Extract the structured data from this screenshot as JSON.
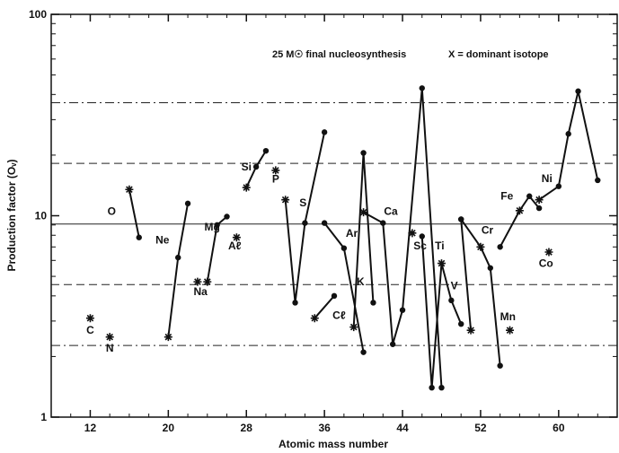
{
  "chart_data": {
    "type": "scatter",
    "title": "",
    "annotation_left": "25 M☉ final nucleosynthesis",
    "annotation_right": "X = dominant isotope",
    "xlabel": "Atomic mass number",
    "ylabel": "Production factor (Oᵥ)",
    "y_scale": "log",
    "xlim": [
      8,
      66
    ],
    "ylim": [
      1,
      100
    ],
    "x_ticks": [
      12,
      20,
      28,
      36,
      44,
      52,
      60
    ],
    "x_tick_labels": [
      "12",
      "20",
      "28",
      "36",
      "44",
      "52",
      "60"
    ],
    "y_ticks": [
      1,
      10,
      100
    ],
    "y_tick_labels": [
      "1",
      "10",
      "100"
    ],
    "reference_lines": [
      {
        "value": 9.1,
        "style": "solid"
      },
      {
        "value": 4.55,
        "style": "dashed"
      },
      {
        "value": 18.2,
        "style": "dashed"
      },
      {
        "value": 2.27,
        "style": "dashdot"
      },
      {
        "value": 36.4,
        "style": "dashdot"
      }
    ],
    "elements": [
      {
        "label": "C",
        "label_x": 12,
        "label_y": 2.7,
        "points": [
          {
            "x": 12,
            "y": 3.1,
            "dominant": true
          }
        ]
      },
      {
        "label": "N",
        "label_x": 14,
        "label_y": 2.2,
        "points": [
          {
            "x": 14,
            "y": 2.5,
            "dominant": true
          }
        ]
      },
      {
        "label": "O",
        "label_x": 14.2,
        "label_y": 10.5,
        "points": [
          {
            "x": 16,
            "y": 13.5,
            "dominant": true
          },
          {
            "x": 17,
            "y": 7.8,
            "dominant": false
          }
        ]
      },
      {
        "label": "Ne",
        "label_x": 19.4,
        "label_y": 7.6,
        "points": [
          {
            "x": 20,
            "y": 2.5,
            "dominant": true
          },
          {
            "x": 21,
            "y": 6.2,
            "dominant": false
          },
          {
            "x": 22,
            "y": 11.5,
            "dominant": false
          }
        ]
      },
      {
        "label": "Na",
        "label_x": 23.3,
        "label_y": 4.2,
        "points": [
          {
            "x": 23,
            "y": 4.7,
            "dominant": true
          }
        ]
      },
      {
        "label": "Mg",
        "label_x": 24.5,
        "label_y": 8.8,
        "points": [
          {
            "x": 24,
            "y": 4.7,
            "dominant": true
          },
          {
            "x": 25,
            "y": 9.0,
            "dominant": false
          },
          {
            "x": 26,
            "y": 9.9,
            "dominant": false
          }
        ]
      },
      {
        "label": "Aℓ",
        "label_x": 26.8,
        "label_y": 7.1,
        "points": [
          {
            "x": 27,
            "y": 7.8,
            "dominant": true
          }
        ]
      },
      {
        "label": "Si",
        "label_x": 28,
        "label_y": 17.5,
        "points": [
          {
            "x": 28,
            "y": 13.8,
            "dominant": true
          },
          {
            "x": 29,
            "y": 17.5,
            "dominant": false
          },
          {
            "x": 30,
            "y": 21.0,
            "dominant": false
          }
        ]
      },
      {
        "label": "P",
        "label_x": 31,
        "label_y": 15.2,
        "points": [
          {
            "x": 31,
            "y": 16.8,
            "dominant": true
          }
        ]
      },
      {
        "label": "S",
        "label_x": 33.8,
        "label_y": 11.6,
        "points": [
          {
            "x": 32,
            "y": 12.0,
            "dominant": true
          },
          {
            "x": 33,
            "y": 3.7,
            "dominant": false
          },
          {
            "x": 34,
            "y": 9.2,
            "dominant": false
          },
          {
            "x": 36,
            "y": 26.0,
            "dominant": false
          }
        ]
      },
      {
        "label": "Cℓ",
        "label_x": 37.5,
        "label_y": 3.2,
        "points": [
          {
            "x": 35,
            "y": 3.1,
            "dominant": true
          },
          {
            "x": 37,
            "y": 4.0,
            "dominant": false
          }
        ]
      },
      {
        "label": "Ar",
        "label_x": 38.8,
        "label_y": 8.2,
        "points": [
          {
            "x": 36,
            "y": 9.2,
            "dominant": false
          },
          {
            "x": 38,
            "y": 6.9,
            "dominant": false
          },
          {
            "x": 40,
            "y": 2.1,
            "dominant": false
          }
        ]
      },
      {
        "label": "K",
        "label_x": 39.7,
        "label_y": 4.7,
        "points": [
          {
            "x": 39,
            "y": 2.8,
            "dominant": true
          },
          {
            "x": 40,
            "y": 20.5,
            "dominant": false
          },
          {
            "x": 41,
            "y": 3.7,
            "dominant": false
          }
        ]
      },
      {
        "label": "Ca",
        "label_x": 42.8,
        "label_y": 10.5,
        "points": [
          {
            "x": 40,
            "y": 10.4,
            "dominant": true
          },
          {
            "x": 42,
            "y": 9.2,
            "dominant": false
          },
          {
            "x": 43,
            "y": 2.3,
            "dominant": false
          },
          {
            "x": 44,
            "y": 3.4,
            "dominant": false
          },
          {
            "x": 46,
            "y": 43.0,
            "dominant": false
          },
          {
            "x": 48,
            "y": 1.4,
            "dominant": false
          }
        ]
      },
      {
        "label": "Sc",
        "label_x": 45.8,
        "label_y": 7.1,
        "points": [
          {
            "x": 45,
            "y": 8.2,
            "dominant": true
          }
        ]
      },
      {
        "label": "Ti",
        "label_x": 47.8,
        "label_y": 7.1,
        "points": [
          {
            "x": 46,
            "y": 7.9,
            "dominant": false
          },
          {
            "x": 47,
            "y": 1.4,
            "dominant": false
          },
          {
            "x": 48,
            "y": 5.8,
            "dominant": true
          },
          {
            "x": 49,
            "y": 3.8,
            "dominant": false
          },
          {
            "x": 50,
            "y": 2.9,
            "dominant": false
          }
        ]
      },
      {
        "label": "V",
        "label_x": 49.3,
        "label_y": 4.5,
        "points": [
          {
            "x": 50,
            "y": 9.6,
            "dominant": false
          },
          {
            "x": 51,
            "y": 2.7,
            "dominant": true
          }
        ]
      },
      {
        "label": "Cr",
        "label_x": 52.7,
        "label_y": 8.5,
        "points": [
          {
            "x": 50,
            "y": 9.6,
            "dominant": false
          },
          {
            "x": 52,
            "y": 7.0,
            "dominant": true
          },
          {
            "x": 53,
            "y": 5.5,
            "dominant": false
          },
          {
            "x": 54,
            "y": 1.8,
            "dominant": false
          }
        ]
      },
      {
        "label": "Mn",
        "label_x": 54.8,
        "label_y": 3.15,
        "points": [
          {
            "x": 55,
            "y": 2.7,
            "dominant": true
          }
        ]
      },
      {
        "label": "Fe",
        "label_x": 54.7,
        "label_y": 12.5,
        "points": [
          {
            "x": 54,
            "y": 7.0,
            "dominant": false
          },
          {
            "x": 56,
            "y": 10.6,
            "dominant": true
          },
          {
            "x": 57,
            "y": 12.5,
            "dominant": false
          },
          {
            "x": 58,
            "y": 10.9,
            "dominant": false
          }
        ]
      },
      {
        "label": "Co",
        "label_x": 58.7,
        "label_y": 5.8,
        "points": [
          {
            "x": 59,
            "y": 6.6,
            "dominant": true
          }
        ]
      },
      {
        "label": "Ni",
        "label_x": 58.8,
        "label_y": 15.3,
        "points": [
          {
            "x": 58,
            "y": 12.0,
            "dominant": true
          },
          {
            "x": 60,
            "y": 14.0,
            "dominant": false
          },
          {
            "x": 61,
            "y": 25.5,
            "dominant": false
          },
          {
            "x": 62,
            "y": 41.5,
            "dominant": false
          },
          {
            "x": 64,
            "y": 15.0,
            "dominant": false
          }
        ]
      }
    ]
  }
}
